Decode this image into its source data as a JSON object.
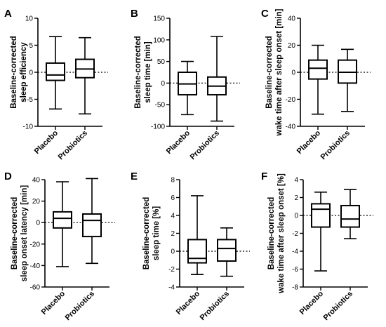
{
  "chart_data": [
    {
      "type": "box",
      "panel_letter": "A",
      "ylabel": [
        "Baseline-corrected",
        "sleep efficiency"
      ],
      "ylim": [
        -10,
        10
      ],
      "yticks": [
        -10,
        -5,
        0,
        5,
        10
      ],
      "tick_labels": [
        "-10",
        "-5",
        "0",
        "5",
        "10"
      ],
      "categories": [
        "Placebo",
        "Probiotics"
      ],
      "boxes": [
        {
          "min": -6.8,
          "q1": -1.5,
          "median": -0.5,
          "q3": 1.7,
          "max": 6.6
        },
        {
          "min": -7.7,
          "q1": -1.0,
          "median": 0.6,
          "q3": 2.4,
          "max": 6.4
        }
      ],
      "reference_line": 0
    },
    {
      "type": "box",
      "panel_letter": "B",
      "ylabel": [
        "Baseline-corrected",
        "sleep time [min]"
      ],
      "ylim": [
        -100,
        150
      ],
      "yticks": [
        -100,
        -50,
        0,
        50,
        100,
        150
      ],
      "tick_labels": [
        "-100",
        "-50",
        "0",
        "50",
        "100",
        "150"
      ],
      "categories": [
        "Placebo",
        "Probiotics"
      ],
      "boxes": [
        {
          "min": -73,
          "q1": -27,
          "median": -2,
          "q3": 25,
          "max": 50
        },
        {
          "min": -88,
          "q1": -27,
          "median": -7,
          "q3": 14,
          "max": 108
        }
      ],
      "reference_line": 0
    },
    {
      "type": "box",
      "panel_letter": "C",
      "ylabel": [
        "Baseline-corrected",
        "wake time after sleep onset [min]"
      ],
      "ylim": [
        -40,
        40
      ],
      "yticks": [
        -40,
        -20,
        0,
        20,
        40
      ],
      "tick_labels": [
        "-40",
        "-20",
        "0",
        "20",
        "40"
      ],
      "categories": [
        "Placebo",
        "Probiotics"
      ],
      "boxes": [
        {
          "min": -31,
          "q1": -5,
          "median": 3,
          "q3": 9,
          "max": 20
        },
        {
          "min": -29,
          "q1": -8,
          "median": 0,
          "q3": 9,
          "max": 17
        }
      ],
      "reference_line": 0
    },
    {
      "type": "box",
      "panel_letter": "D",
      "ylabel": [
        "Baseline-corrected",
        "sleep onset latency [min]"
      ],
      "ylim": [
        -60,
        40
      ],
      "yticks": [
        -60,
        -40,
        -20,
        0,
        20,
        40
      ],
      "tick_labels": [
        "-60",
        "-40",
        "-20",
        "0",
        "20",
        "40"
      ],
      "categories": [
        "Placebo",
        "Probiotics"
      ],
      "boxes": [
        {
          "min": -41,
          "q1": -5,
          "median": 4,
          "q3": 10,
          "max": 38
        },
        {
          "min": -38,
          "q1": -13,
          "median": 2,
          "q3": 8,
          "max": 41
        }
      ],
      "reference_line": 0
    },
    {
      "type": "box",
      "panel_letter": "E",
      "ylabel": [
        "Baseline-corrected",
        "sleep time [%]"
      ],
      "ylim": [
        -4,
        8
      ],
      "yticks": [
        -4,
        -2,
        0,
        2,
        4,
        6,
        8
      ],
      "tick_labels": [
        "-4",
        "-2",
        "0",
        "2",
        "4",
        "6",
        "8"
      ],
      "categories": [
        "Placebo",
        "Probiotics"
      ],
      "boxes": [
        {
          "min": -2.6,
          "q1": -1.3,
          "median": -0.8,
          "q3": 1.3,
          "max": 6.2
        },
        {
          "min": -2.8,
          "q1": -1.1,
          "median": 0.3,
          "q3": 1.3,
          "max": 2.6
        }
      ],
      "reference_line": 0
    },
    {
      "type": "box",
      "panel_letter": "F",
      "ylabel": [
        "Baseline-corrected",
        "wake time after sleep onset [%]"
      ],
      "ylim": [
        -8,
        4
      ],
      "yticks": [
        -8,
        -6,
        -4,
        -2,
        0,
        2,
        4
      ],
      "tick_labels": [
        "-8",
        "-6",
        "-4",
        "-2",
        "0",
        "2",
        "4"
      ],
      "categories": [
        "Placebo",
        "Probiotics"
      ],
      "boxes": [
        {
          "min": -6.2,
          "q1": -1.3,
          "median": 0.7,
          "q3": 1.3,
          "max": 2.6
        },
        {
          "min": -2.6,
          "q1": -1.3,
          "median": -0.4,
          "q3": 1.1,
          "max": 2.9
        }
      ],
      "reference_line": 0
    }
  ]
}
